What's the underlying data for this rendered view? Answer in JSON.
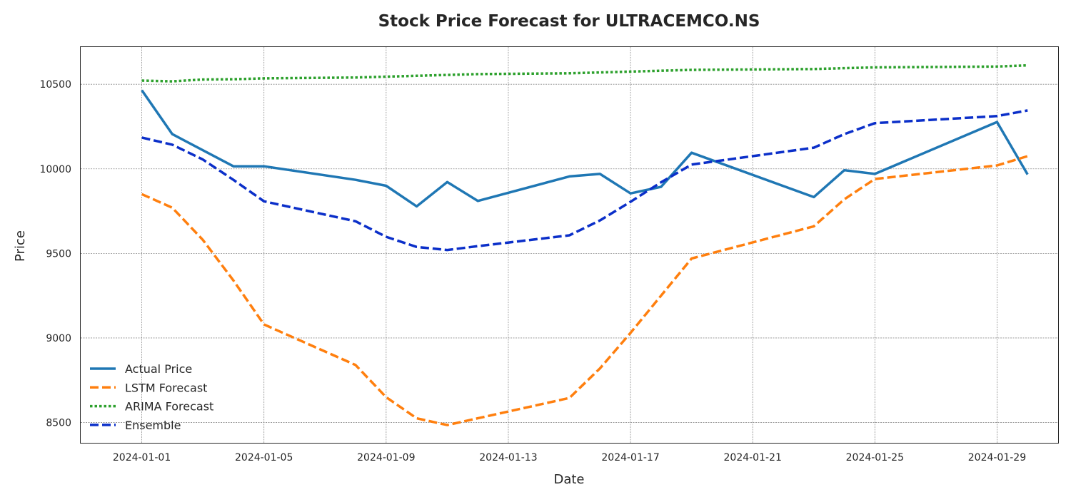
{
  "chart_data": {
    "type": "line",
    "title": "Stock Price Forecast for ULTRACEMCO.NS",
    "xlabel": "Date",
    "ylabel": "Price",
    "x_range": [
      "2023-12-30",
      "2024-01-31"
    ],
    "ylim": [
      8380,
      10720
    ],
    "x_ticks": [
      "2024-01-01",
      "2024-01-05",
      "2024-01-09",
      "2024-01-13",
      "2024-01-17",
      "2024-01-21",
      "2024-01-25",
      "2024-01-29"
    ],
    "y_ticks": [
      8500,
      9000,
      9500,
      10000,
      10500
    ],
    "grid": true,
    "legend_position": "lower-left",
    "series": [
      {
        "name": "Actual Price",
        "color": "#1f77b4",
        "style": "solid",
        "points": [
          [
            "2024-01-01",
            10465
          ],
          [
            "2024-01-02",
            10205
          ],
          [
            "2024-01-04",
            10015
          ],
          [
            "2024-01-05",
            10015
          ],
          [
            "2024-01-08",
            9935
          ],
          [
            "2024-01-09",
            9900
          ],
          [
            "2024-01-10",
            9778
          ],
          [
            "2024-01-11",
            9922
          ],
          [
            "2024-01-12",
            9810
          ],
          [
            "2024-01-15",
            9955
          ],
          [
            "2024-01-16",
            9970
          ],
          [
            "2024-01-17",
            9855
          ],
          [
            "2024-01-18",
            9893
          ],
          [
            "2024-01-19",
            10095
          ],
          [
            "2024-01-23",
            9833
          ],
          [
            "2024-01-24",
            9992
          ],
          [
            "2024-01-25",
            9970
          ],
          [
            "2024-01-29",
            10277
          ],
          [
            "2024-01-30",
            9967
          ]
        ]
      },
      {
        "name": "LSTM Forecast",
        "color": "#ff7f0e",
        "style": "dashed",
        "points": [
          [
            "2024-01-01",
            9850
          ],
          [
            "2024-01-02",
            9770
          ],
          [
            "2024-01-03",
            9580
          ],
          [
            "2024-01-04",
            9340
          ],
          [
            "2024-01-05",
            9080
          ],
          [
            "2024-01-08",
            8840
          ],
          [
            "2024-01-09",
            8650
          ],
          [
            "2024-01-10",
            8525
          ],
          [
            "2024-01-11",
            8485
          ],
          [
            "2024-01-12",
            8525
          ],
          [
            "2024-01-15",
            8645
          ],
          [
            "2024-01-16",
            8820
          ],
          [
            "2024-01-17",
            9030
          ],
          [
            "2024-01-18",
            9250
          ],
          [
            "2024-01-19",
            9470
          ],
          [
            "2024-01-23",
            9660
          ],
          [
            "2024-01-24",
            9820
          ],
          [
            "2024-01-25",
            9940
          ],
          [
            "2024-01-29",
            10020
          ],
          [
            "2024-01-30",
            10075
          ]
        ]
      },
      {
        "name": "ARIMA Forecast",
        "color": "#2ca02c",
        "style": "dotted",
        "points": [
          [
            "2024-01-01",
            10522
          ],
          [
            "2024-01-02",
            10517
          ],
          [
            "2024-01-03",
            10528
          ],
          [
            "2024-01-04",
            10530
          ],
          [
            "2024-01-05",
            10535
          ],
          [
            "2024-01-08",
            10540
          ],
          [
            "2024-01-09",
            10545
          ],
          [
            "2024-01-10",
            10550
          ],
          [
            "2024-01-11",
            10555
          ],
          [
            "2024-01-12",
            10560
          ],
          [
            "2024-01-15",
            10565
          ],
          [
            "2024-01-16",
            10570
          ],
          [
            "2024-01-17",
            10575
          ],
          [
            "2024-01-18",
            10580
          ],
          [
            "2024-01-19",
            10585
          ],
          [
            "2024-01-23",
            10590
          ],
          [
            "2024-01-24",
            10595
          ],
          [
            "2024-01-25",
            10600
          ],
          [
            "2024-01-29",
            10605
          ],
          [
            "2024-01-30",
            10612
          ]
        ]
      },
      {
        "name": "Ensemble",
        "color": "#0b2fc9",
        "style": "dashed",
        "points": [
          [
            "2024-01-01",
            10185
          ],
          [
            "2024-01-02",
            10143
          ],
          [
            "2024-01-03",
            10055
          ],
          [
            "2024-01-04",
            9935
          ],
          [
            "2024-01-05",
            9808
          ],
          [
            "2024-01-08",
            9690
          ],
          [
            "2024-01-09",
            9598
          ],
          [
            "2024-01-10",
            9538
          ],
          [
            "2024-01-11",
            9520
          ],
          [
            "2024-01-12",
            9543
          ],
          [
            "2024-01-15",
            9607
          ],
          [
            "2024-01-16",
            9695
          ],
          [
            "2024-01-17",
            9805
          ],
          [
            "2024-01-18",
            9920
          ],
          [
            "2024-01-19",
            10025
          ],
          [
            "2024-01-23",
            10125
          ],
          [
            "2024-01-24",
            10205
          ],
          [
            "2024-01-25",
            10270
          ],
          [
            "2024-01-29",
            10312
          ],
          [
            "2024-01-30",
            10345
          ]
        ]
      }
    ]
  }
}
